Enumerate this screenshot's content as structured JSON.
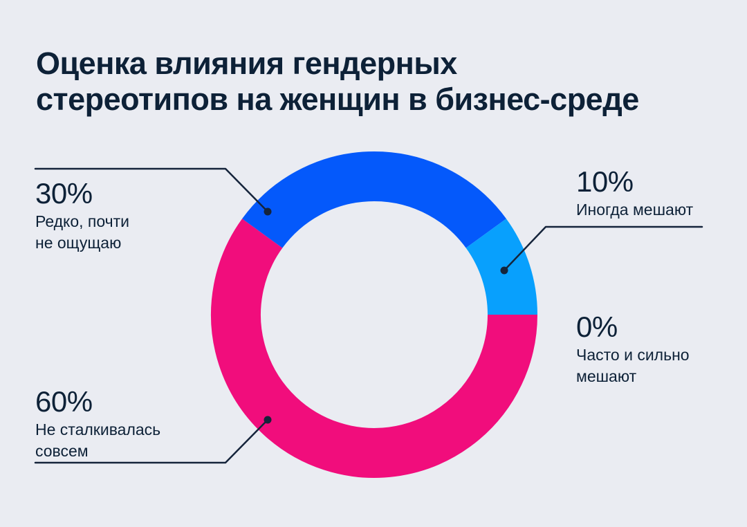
{
  "theme": {
    "background": "#EAECF2",
    "text_color": "#0D2137",
    "callout_line_color": "#15243B"
  },
  "title": "Оценка влияния гендерных\nстереотипов на женщин в бизнес-среде",
  "chart_data": {
    "type": "pie",
    "subtype": "donut",
    "title": "Оценка влияния гендерных стереотипов на женщин в бизнес-среде",
    "unit": "%",
    "start_position": "3-oclock",
    "direction": "clockwise",
    "segments": [
      {
        "label": "Не сталкивалась совсем",
        "value": 60,
        "color": "#F10D7C"
      },
      {
        "label": "Редко, почти не ощущаю",
        "value": 30,
        "color": "#0459FB"
      },
      {
        "label": "Иногда мешают",
        "value": 10,
        "color": "#08A0FD"
      },
      {
        "label": "Часто и сильно мешают",
        "value": 0,
        "color": null
      }
    ]
  },
  "annotations": [
    {
      "id": "rarely",
      "pct": "30%",
      "text": "Редко, почти\nне ощущаю"
    },
    {
      "id": "sometimes",
      "pct": "10%",
      "text": "Иногда мешают"
    },
    {
      "id": "often",
      "pct": "0%",
      "text": "Часто и сильно\nмешают"
    },
    {
      "id": "never",
      "pct": "60%",
      "text": "Не сталкивалась\nсовсем"
    }
  ]
}
